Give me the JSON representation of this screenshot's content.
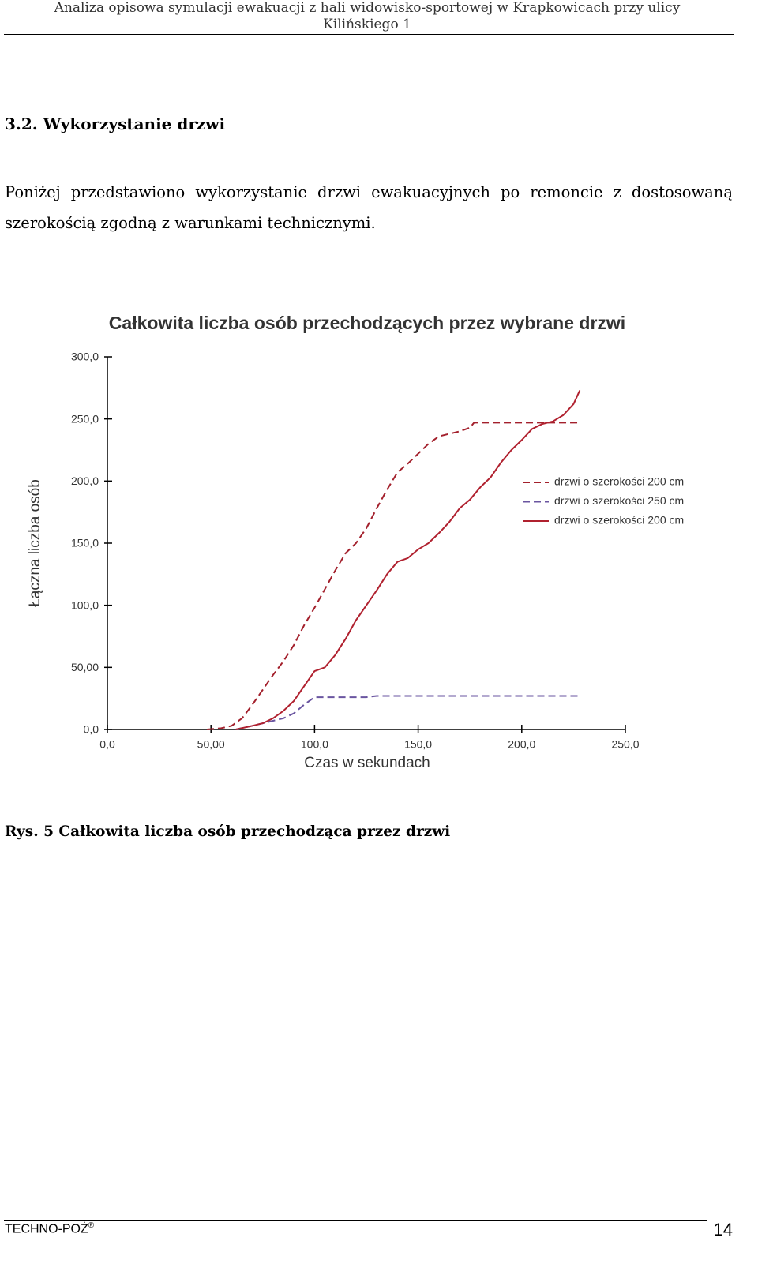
{
  "header": {
    "title": "Analiza opisowa symulacji ewakuacji z hali widowisko-sportowej w Krapkowicach przy ulicy Kilińskiego 1"
  },
  "section": {
    "heading": "3.2.  Wykorzystanie drzwi",
    "paragraph": "Poniżej przedstawiono wykorzystanie drzwi ewakuacyjnych po remoncie z dostosowaną szerokością zgodną z warunkami technicznymi."
  },
  "chart_data": {
    "type": "line",
    "title": "Całkowita liczba osób przechodzących przez wybrane drzwi",
    "x_label": "Czas w sekundach",
    "y_label": "Łączna liczba osób",
    "xlim": [
      0,
      250
    ],
    "ylim": [
      0,
      300
    ],
    "xticks": [
      {
        "value": 0,
        "label": "0,0"
      },
      {
        "value": 50,
        "label": "50,00"
      },
      {
        "value": 100,
        "label": "100,0"
      },
      {
        "value": 150,
        "label": "150,0"
      },
      {
        "value": 200,
        "label": "200,0"
      },
      {
        "value": 250,
        "label": "250,0"
      }
    ],
    "yticks": [
      {
        "value": 0,
        "label": "0,0"
      },
      {
        "value": 50,
        "label": "50,00"
      },
      {
        "value": 100,
        "label": "100,0"
      },
      {
        "value": 150,
        "label": "150,0"
      },
      {
        "value": 200,
        "label": "200,0"
      },
      {
        "value": 250,
        "label": "250,0"
      },
      {
        "value": 300,
        "label": "300,0"
      }
    ],
    "grid": false,
    "legend": "right",
    "series": [
      {
        "name": "drzwi o szerokości 200 cm",
        "color": "#a3202c",
        "dashed": true,
        "x": [
          48,
          55,
          60,
          65,
          70,
          75,
          80,
          85,
          90,
          95,
          100,
          105,
          110,
          115,
          120,
          125,
          130,
          135,
          140,
          145,
          150,
          155,
          160,
          170,
          175,
          177,
          228
        ],
        "values": [
          0,
          1,
          3,
          9,
          20,
          32,
          44,
          55,
          68,
          84,
          98,
          113,
          128,
          142,
          150,
          162,
          178,
          193,
          207,
          214,
          222,
          230,
          236,
          240,
          243,
          247,
          247
        ]
      },
      {
        "name": "drzwi o szerokości 250 cm",
        "color": "#6a55a0",
        "dashed": true,
        "x": [
          62,
          70,
          75,
          80,
          85,
          90,
          95,
          100,
          125,
          130,
          228
        ],
        "values": [
          0,
          3,
          5,
          7,
          9,
          13,
          20,
          26,
          26,
          27,
          27
        ]
      },
      {
        "name": "drzwi o szerokości 200 cm",
        "color": "#b0212f",
        "dashed": false,
        "x": [
          62,
          70,
          75,
          80,
          85,
          90,
          95,
          100,
          105,
          110,
          115,
          120,
          125,
          130,
          135,
          140,
          145,
          150,
          155,
          160,
          165,
          170,
          175,
          180,
          185,
          190,
          195,
          200,
          205,
          210,
          215,
          220,
          225,
          228
        ],
        "values": [
          0,
          3,
          5,
          9,
          15,
          23,
          35,
          47,
          50,
          60,
          73,
          88,
          100,
          112,
          125,
          135,
          138,
          145,
          150,
          158,
          167,
          178,
          185,
          195,
          203,
          215,
          225,
          233,
          242,
          246,
          248,
          253,
          262,
          273
        ]
      }
    ]
  },
  "caption": "Rys. 5 Całkowita liczba osób przechodząca przez drzwi",
  "footer": {
    "company": "TECHNO-POŻ",
    "mark": "®",
    "page": "14"
  }
}
